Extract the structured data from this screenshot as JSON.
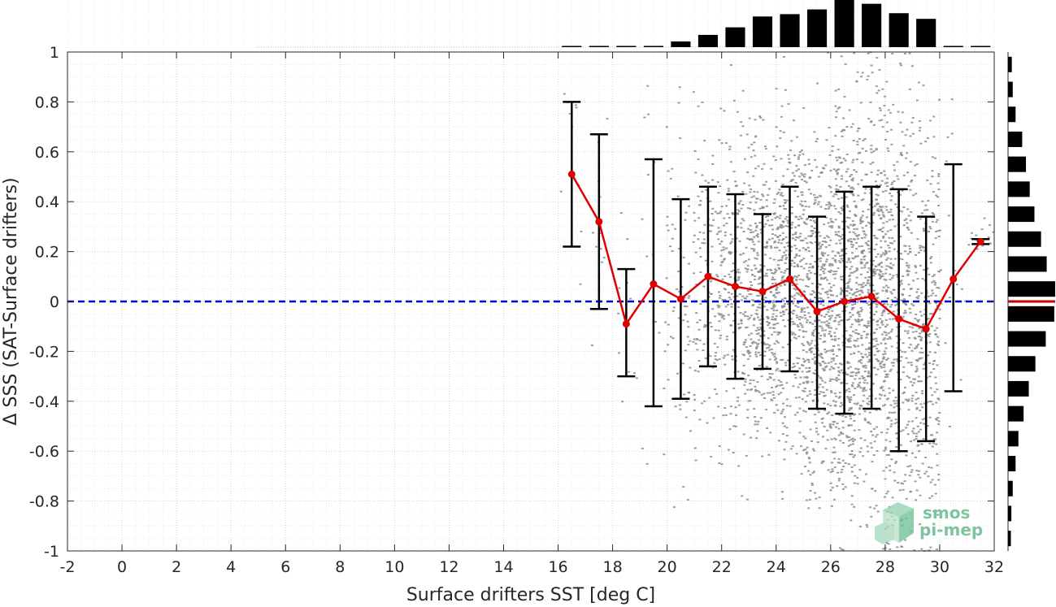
{
  "chart_data": {
    "type": "scatter",
    "xlabel": "Surface drifters SST [deg C]",
    "ylabel": "Δ SSS (SAT-Surface drifters)",
    "xlim": [
      -2,
      32
    ],
    "ylim": [
      -1,
      1
    ],
    "x_ticks": [
      "-2",
      "0",
      "2",
      "4",
      "6",
      "8",
      "10",
      "12",
      "14",
      "16",
      "18",
      "20",
      "22",
      "24",
      "26",
      "28",
      "30",
      "32"
    ],
    "y_ticks": [
      "-1",
      "-0.8",
      "-0.6",
      "-0.4",
      "-0.2",
      "0",
      "0.2",
      "0.4",
      "0.6",
      "0.8",
      "1"
    ],
    "grid": "minor dotted",
    "reference_line": {
      "y": 0,
      "style": "dashed",
      "color": "#0000cc"
    },
    "binned_mean": {
      "color": "#e00000",
      "x": [
        16.5,
        17.5,
        18.5,
        19.5,
        20.5,
        21.5,
        22.5,
        23.5,
        24.5,
        25.5,
        26.5,
        27.5,
        28.5,
        29.5,
        30.5,
        31.5
      ],
      "mean": [
        0.51,
        0.32,
        -0.09,
        0.07,
        0.01,
        0.1,
        0.06,
        0.04,
        0.09,
        -0.04,
        0.0,
        0.02,
        -0.07,
        -0.11,
        0.09,
        0.24
      ],
      "upper": [
        0.8,
        0.67,
        0.13,
        0.57,
        0.41,
        0.46,
        0.43,
        0.35,
        0.46,
        0.34,
        0.44,
        0.46,
        0.45,
        0.34,
        0.55,
        0.25
      ],
      "lower": [
        0.22,
        -0.03,
        -0.3,
        -0.42,
        -0.39,
        -0.26,
        -0.31,
        -0.27,
        -0.28,
        -0.43,
        -0.45,
        -0.43,
        -0.6,
        -0.56,
        -0.36,
        0.23
      ]
    },
    "scatter_color": "#8c8c8c",
    "x_histogram": {
      "bin_centers": [
        16.5,
        17.5,
        18.5,
        19.5,
        20.5,
        21.5,
        22.5,
        23.5,
        24.5,
        25.5,
        26.5,
        27.5,
        28.5,
        29.5,
        30.5,
        31.5
      ],
      "relative_counts": [
        0.003,
        0.005,
        0.005,
        0.02,
        0.12,
        0.26,
        0.42,
        0.65,
        0.7,
        0.8,
        1.0,
        0.92,
        0.72,
        0.6,
        0.02,
        0.01
      ]
    },
    "y_histogram": {
      "bin_centers": [
        -0.95,
        -0.85,
        -0.75,
        -0.65,
        -0.55,
        -0.45,
        -0.35,
        -0.25,
        -0.15,
        -0.05,
        0.05,
        0.15,
        0.25,
        0.35,
        0.45,
        0.55,
        0.65,
        0.75,
        0.85,
        0.95
      ],
      "relative_counts": [
        0.06,
        0.07,
        0.1,
        0.16,
        0.22,
        0.33,
        0.44,
        0.58,
        0.8,
        0.98,
        1.0,
        0.82,
        0.7,
        0.56,
        0.46,
        0.38,
        0.3,
        0.16,
        0.1,
        0.08
      ],
      "zero_line_color": "#cc0000"
    }
  },
  "logo": {
    "line1": "smos",
    "line2": "pi-mep",
    "color": "#7fc4a0"
  }
}
